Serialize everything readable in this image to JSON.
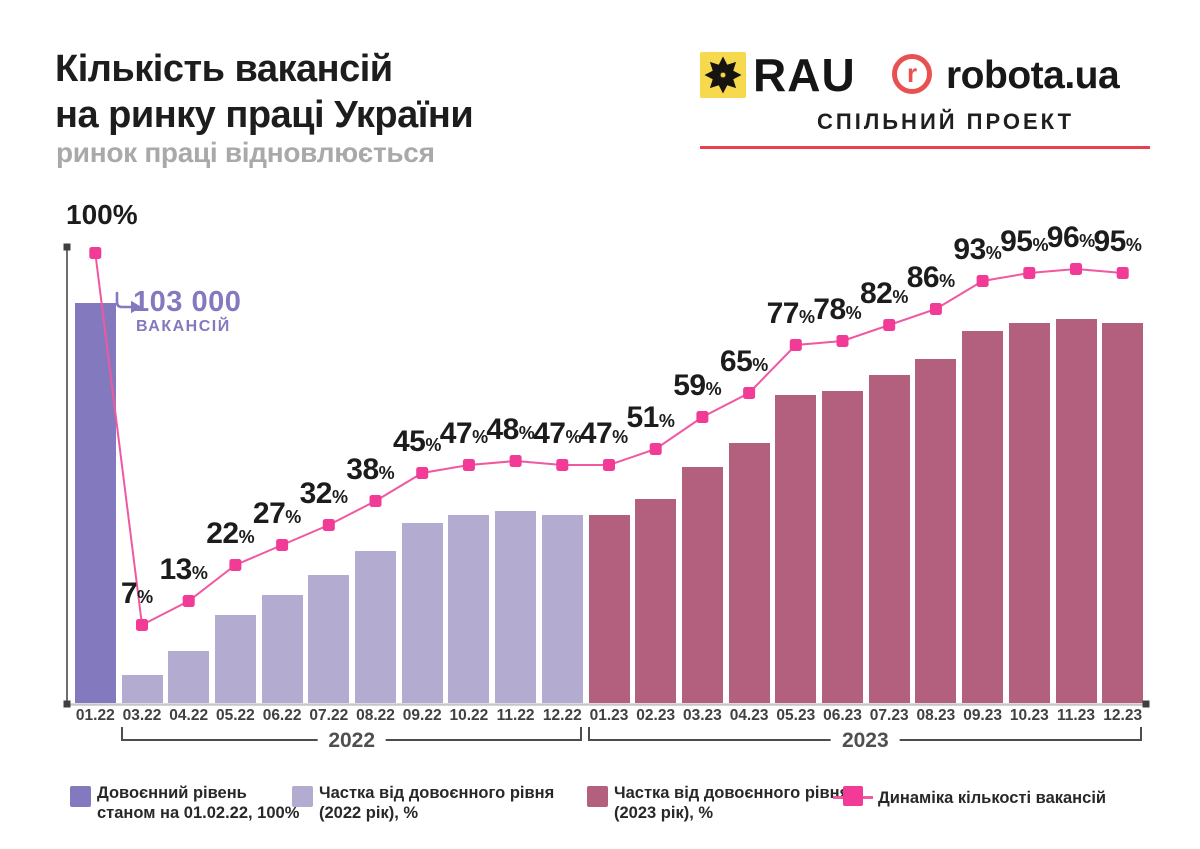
{
  "header": {
    "title_line1": "Кількість вакансій",
    "title_line2": "на ринку праці України",
    "subtitle": "ринок праці відновлюється"
  },
  "logos": {
    "rau_text": "RAU",
    "robota_r": "r",
    "robota_text": "robota.ua",
    "joint_project": "СПІЛЬНИЙ ПРОЕКТ"
  },
  "chart_data": {
    "type": "bar+line",
    "title": "Кількість вакансій на ринку праці України",
    "subtitle": "ринок праці відновлюється",
    "unit": "%",
    "ylim": [
      0,
      100
    ],
    "axis_top_label": "100%",
    "categories": [
      "01.22",
      "03.22",
      "04.22",
      "05.22",
      "06.22",
      "07.22",
      "08.22",
      "09.22",
      "10.22",
      "11.22",
      "12.22",
      "01.23",
      "02.23",
      "03.23",
      "04.23",
      "05.23",
      "06.23",
      "07.23",
      "08.23",
      "09.23",
      "10.23",
      "11.23",
      "12.23"
    ],
    "values": [
      100,
      7,
      13,
      22,
      27,
      32,
      38,
      45,
      47,
      48,
      47,
      47,
      51,
      59,
      65,
      77,
      78,
      82,
      86,
      93,
      95,
      96,
      95
    ],
    "line_equals_bars": true,
    "bar_segments": [
      {
        "name": "Довоєнний рівень станом на 01.02.22, 100%",
        "indices": [
          0,
          0
        ],
        "color": "#8379bf"
      },
      {
        "name": "Частка від довоєнного рівня (2022 рік), %",
        "indices": [
          1,
          10
        ],
        "color": "#b3abd0"
      },
      {
        "name": "Частка від довоєнного рівня (2023 рік), %",
        "indices": [
          11,
          22
        ],
        "color": "#b2607e"
      }
    ],
    "line": {
      "name": "Динаміка кількості вакансій",
      "color": "#f0589f",
      "marker_color": "#f23a97"
    },
    "year_brackets": [
      {
        "label": "2022",
        "from": 1,
        "to": 10
      },
      {
        "label": "2023",
        "from": 11,
        "to": 22
      }
    ],
    "annotation": {
      "value": "103 000",
      "label": "ВАКАНСІЙ"
    },
    "grid": false,
    "legend_position": "bottom"
  },
  "legend": [
    {
      "marker": "square",
      "color": "#8379bf",
      "lines": [
        "Довоєнний рівень",
        "станом на 01.02.22, 100%"
      ]
    },
    {
      "marker": "square",
      "color": "#b3abd0",
      "lines": [
        "Частка від довоєнного рівня",
        "(2022 рік), %"
      ]
    },
    {
      "marker": "square",
      "color": "#b2607e",
      "lines": [
        "Частка від довоєнного рівня",
        "(2023 рік), %"
      ]
    },
    {
      "marker": "line-square",
      "color": "#f23a97",
      "line_color": "#f0589f",
      "lines": [
        "Динаміка кількості вакансій"
      ]
    }
  ],
  "colors": {
    "prewar_bar": "#8379bf",
    "bars_2022": "#b3abd0",
    "bars_2023": "#b2607e",
    "line": "#f0589f",
    "marker": "#f23a97",
    "annotation": "#8379bf",
    "axis": "#3f3f3f",
    "baseline": "#c6c6c6",
    "title": "#1d1d1d",
    "subtitle": "#a9a9a9",
    "rau_yellow": "#f6d94d",
    "robota_red": "#e95150",
    "divider_red": "#e8404e"
  }
}
